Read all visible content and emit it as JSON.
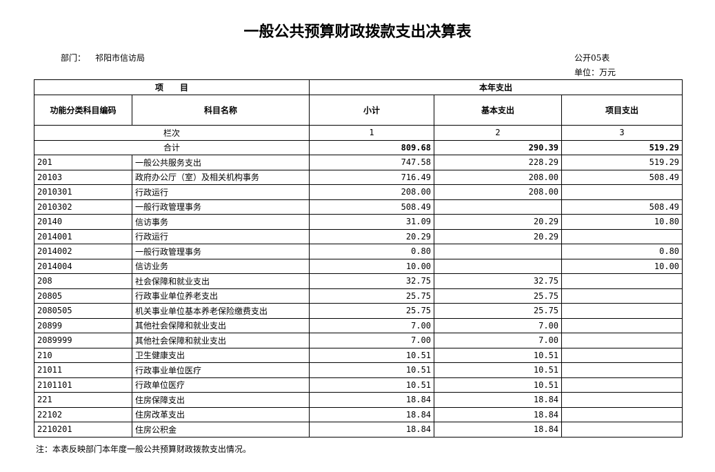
{
  "title": "一般公共预算财政拨款支出决算表",
  "department_label": "部门：",
  "department": "祁阳市信访局",
  "form_no": "公开05表",
  "unit": "单位：万元",
  "headers": {
    "item": "项　　目",
    "current_year": "本年支出",
    "code": "功能分类科目编码",
    "name": "科目名称",
    "subtotal": "小计",
    "basic": "基本支出",
    "project": "项目支出"
  },
  "column_index": {
    "label": "栏次",
    "c1": "1",
    "c2": "2",
    "c3": "3"
  },
  "total": {
    "label": "合计",
    "subtotal": "809.68",
    "basic": "290.39",
    "project": "519.29"
  },
  "rows": [
    {
      "code": "201",
      "name": "一般公共服务支出",
      "subtotal": "747.58",
      "basic": "228.29",
      "project": "519.29"
    },
    {
      "code": "20103",
      "name": "政府办公厅（室）及相关机构事务",
      "subtotal": "716.49",
      "basic": "208.00",
      "project": "508.49"
    },
    {
      "code": "2010301",
      "name": "行政运行",
      "subtotal": "208.00",
      "basic": "208.00",
      "project": ""
    },
    {
      "code": "2010302",
      "name": "一般行政管理事务",
      "subtotal": "508.49",
      "basic": "",
      "project": "508.49"
    },
    {
      "code": "20140",
      "name": "信访事务",
      "subtotal": "31.09",
      "basic": "20.29",
      "project": "10.80"
    },
    {
      "code": "2014001",
      "name": "行政运行",
      "subtotal": "20.29",
      "basic": "20.29",
      "project": ""
    },
    {
      "code": "2014002",
      "name": "一般行政管理事务",
      "subtotal": "0.80",
      "basic": "",
      "project": "0.80"
    },
    {
      "code": "2014004",
      "name": "信访业务",
      "subtotal": "10.00",
      "basic": "",
      "project": "10.00"
    },
    {
      "code": "208",
      "name": "社会保障和就业支出",
      "subtotal": "32.75",
      "basic": "32.75",
      "project": ""
    },
    {
      "code": "20805",
      "name": "行政事业单位养老支出",
      "subtotal": "25.75",
      "basic": "25.75",
      "project": ""
    },
    {
      "code": "2080505",
      "name": "机关事业单位基本养老保险缴费支出",
      "subtotal": "25.75",
      "basic": "25.75",
      "project": ""
    },
    {
      "code": "20899",
      "name": "其他社会保障和就业支出",
      "subtotal": "7.00",
      "basic": "7.00",
      "project": ""
    },
    {
      "code": "2089999",
      "name": "其他社会保障和就业支出",
      "subtotal": "7.00",
      "basic": "7.00",
      "project": ""
    },
    {
      "code": "210",
      "name": "卫生健康支出",
      "subtotal": "10.51",
      "basic": "10.51",
      "project": ""
    },
    {
      "code": "21011",
      "name": "行政事业单位医疗",
      "subtotal": "10.51",
      "basic": "10.51",
      "project": ""
    },
    {
      "code": "2101101",
      "name": "行政单位医疗",
      "subtotal": "10.51",
      "basic": "10.51",
      "project": ""
    },
    {
      "code": "221",
      "name": "住房保障支出",
      "subtotal": "18.84",
      "basic": "18.84",
      "project": ""
    },
    {
      "code": "22102",
      "name": "住房改革支出",
      "subtotal": "18.84",
      "basic": "18.84",
      "project": ""
    },
    {
      "code": "2210201",
      "name": "住房公积金",
      "subtotal": "18.84",
      "basic": "18.84",
      "project": ""
    }
  ],
  "note": "注：本表反映部门本年度一般公共预算财政拨款支出情况。"
}
